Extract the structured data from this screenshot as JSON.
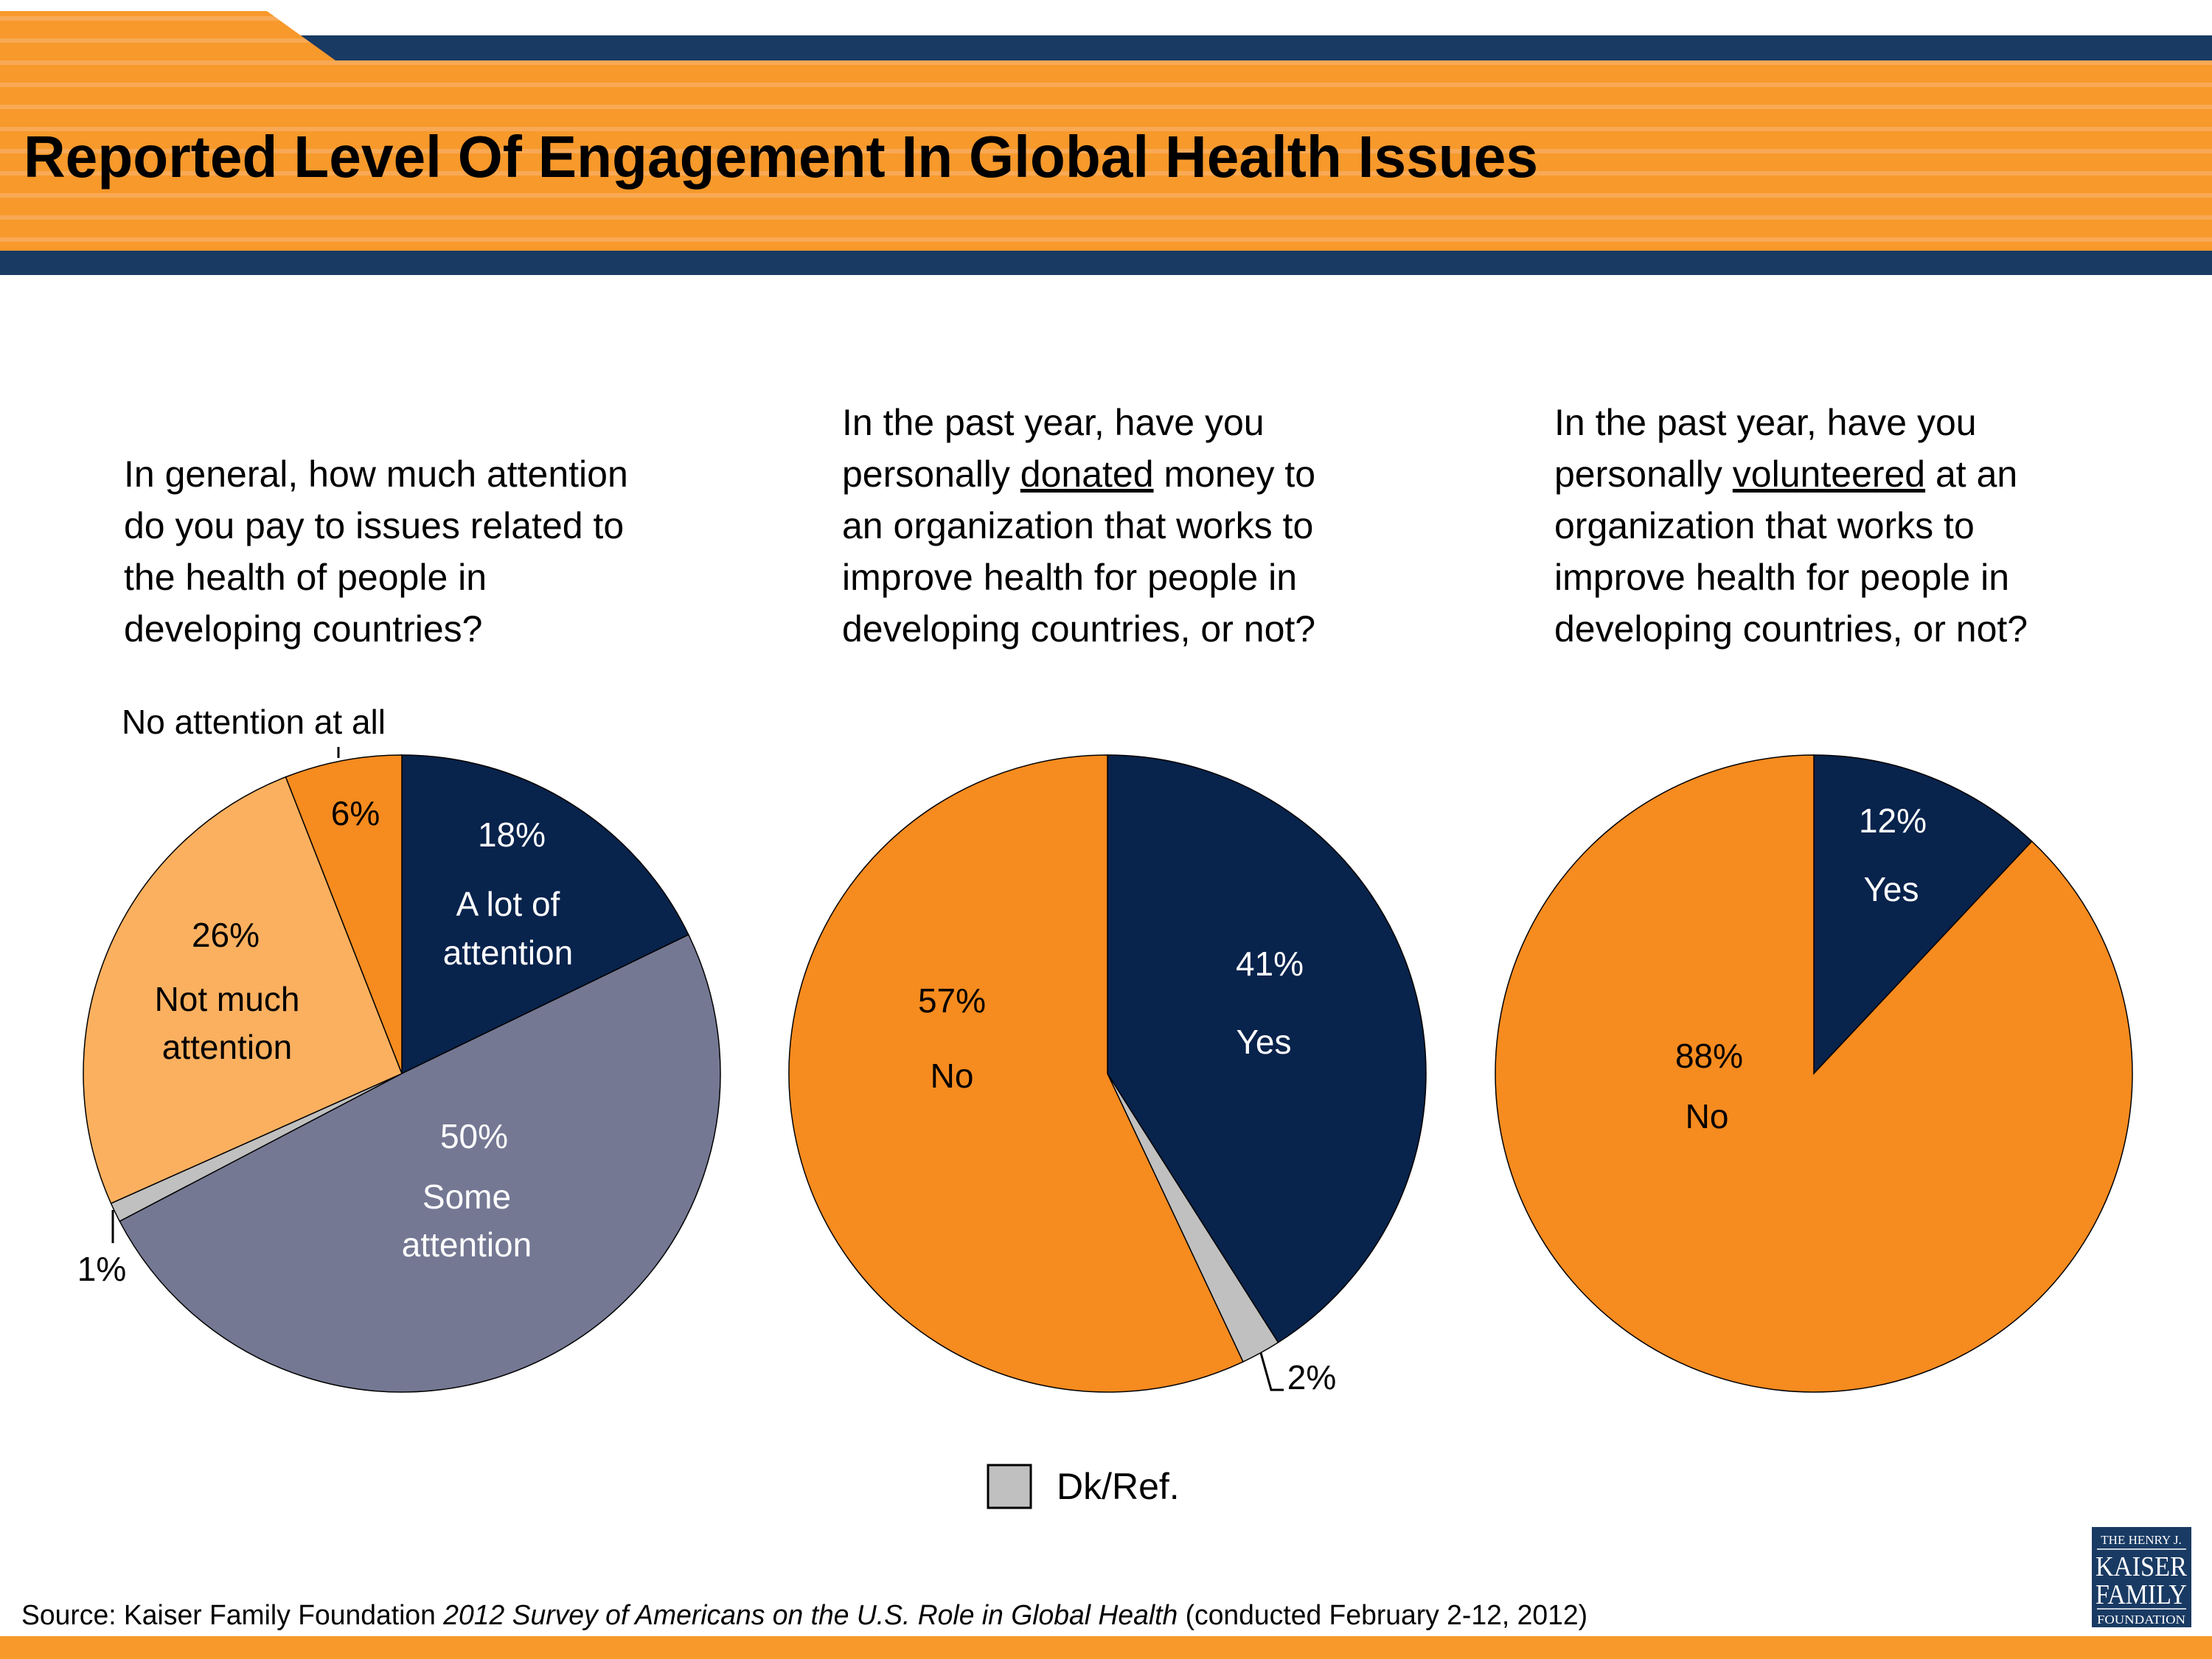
{
  "title": "Reported Level Of Engagement In Global Health Issues",
  "colors": {
    "navy": "#08234C",
    "orange": "#F68B1F",
    "light_orange": "#FBB05F",
    "slate": "#747893",
    "gray": "#C0C0C0",
    "header_orange": "#F7992B",
    "header_navy": "#193A63"
  },
  "questions": [
    {
      "lines": [
        {
          "pre": "In general, how much attention"
        },
        {
          "pre": "do you pay to issues related to"
        },
        {
          "pre": "the health of people in"
        },
        {
          "pre": "developing countries?"
        }
      ]
    },
    {
      "lines": [
        {
          "pre": "In the past year, have you"
        },
        {
          "pre": "personally ",
          "u": "donated",
          "post": " money to"
        },
        {
          "pre": "an organization that works to"
        },
        {
          "pre": "improve health for people in"
        },
        {
          "pre": "developing countries, or not?"
        }
      ]
    },
    {
      "lines": [
        {
          "pre": "In the past year, have you"
        },
        {
          "pre": "personally ",
          "u": "volunteered",
          "post": " at an"
        },
        {
          "pre": "organization that works to"
        },
        {
          "pre": "improve health for people in"
        },
        {
          "pre": "developing countries, or not?"
        }
      ]
    }
  ],
  "chart_data": [
    {
      "type": "pie",
      "start": "top",
      "direction": "clockwise",
      "slices": [
        {
          "label": "A lot of attention",
          "value": 18,
          "color": "#08234C"
        },
        {
          "label": "Some attention",
          "value": 50,
          "color": "#747893"
        },
        {
          "label": "Dk/Ref.",
          "value": 1,
          "color": "#C0C0C0"
        },
        {
          "label": "Not much attention",
          "value": 26,
          "color": "#FBB05F"
        },
        {
          "label": "No attention at all",
          "value": 6,
          "color": "#F68B1F"
        }
      ],
      "text": {
        "s0_pct": "18%",
        "s0_l1": "A lot of",
        "s0_l2": "attention",
        "s1_pct": "50%",
        "s1_l1": "Some",
        "s1_l2": "attention",
        "s2_pct": "1%",
        "s3_pct": "26%",
        "s3_l1": "Not much",
        "s3_l2": "attention",
        "s4_pct": "6%",
        "s4_l1": "No attention at all"
      }
    },
    {
      "type": "pie",
      "start": "top",
      "direction": "clockwise",
      "slices": [
        {
          "label": "Yes",
          "value": 41,
          "color": "#08234C"
        },
        {
          "label": "Dk/Ref.",
          "value": 2,
          "color": "#C0C0C0"
        },
        {
          "label": "No",
          "value": 57,
          "color": "#F68B1F"
        }
      ],
      "text": {
        "s0_pct": "41%",
        "s0_l1": "Yes",
        "s1_pct": "2%",
        "s2_pct": "57%",
        "s2_l1": "No"
      }
    },
    {
      "type": "pie",
      "start": "top",
      "direction": "clockwise",
      "slices": [
        {
          "label": "Yes",
          "value": 12,
          "color": "#08234C"
        },
        {
          "label": "No",
          "value": 88,
          "color": "#F68B1F"
        }
      ],
      "text": {
        "s0_pct": "12%",
        "s0_l1": "Yes",
        "s1_pct": "88%",
        "s1_l1": "No"
      }
    }
  ],
  "legend": {
    "label": "Dk/Ref.",
    "color": "#C0C0C0"
  },
  "source": {
    "pre": "Source: Kaiser Family Foundation ",
    "italic": "2012 Survey of Americans on the U.S. Role in Global Health",
    "post": " (conducted February 2-12, 2012)"
  },
  "logo": {
    "line1": "THE HENRY J.",
    "line2": "KAISER",
    "line3": "FAMILY",
    "line4": "FOUNDATION"
  }
}
